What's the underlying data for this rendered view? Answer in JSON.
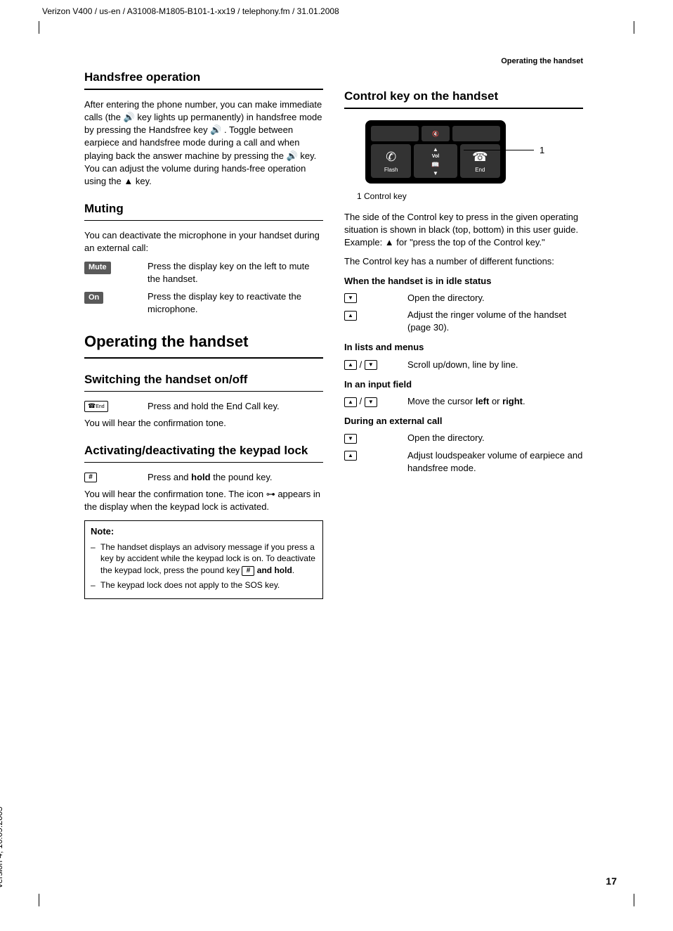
{
  "header": {
    "fileinfo": "Verizon V400 / us-en / A31008-M1805-B101-1-xx19 / telephony.fm / 31.01.2008",
    "running_title": "Operating the handset"
  },
  "side_version": "Version 4, 16.09.2005",
  "page_number": "17",
  "left": {
    "handsfree": {
      "title": "Handsfree operation",
      "body": "After entering the phone number, you can make immediate calls (the  🔊  key lights up permanently) in handsfree mode by pressing the Handsfree key  🔊 . Toggle between earpiece and handsfree mode during a call and when playing back the answer machine by pressing the  🔊  key. You can adjust the volume during hands-free operation using the  ▲  key."
    },
    "muting": {
      "title": "Muting",
      "body": "You can deactivate the microphone in your handset during an external call:",
      "mute_label": "Mute",
      "mute_desc": "Press the display key on the left to mute the handset.",
      "on_label": "On",
      "on_desc": "Press the display key to reactivate the microphone."
    },
    "chapter_title": "Operating the handset",
    "switching": {
      "title": "Switching the handset on/off",
      "key_desc": "Press and hold the End Call key.",
      "confirm": "You will hear the confirmation tone."
    },
    "keypad": {
      "title": "Activating/deactivating the keypad lock",
      "key_desc": "Press and hold the pound key.",
      "hold_word": "hold",
      "press_and": "Press and ",
      "pound_suffix": " the pound key.",
      "body": "You will hear the confirmation tone. The icon ⊶ appears in the display when the keypad lock is activated.",
      "note_title": "Note:",
      "note1_a": "The handset displays an advisory message if you press a key by accident while the keypad lock is on. To deactivate the keypad lock, press the pound key ",
      "note1_b": " and hold",
      "note1_c": ".",
      "note2": "The keypad lock does not apply to the SOS key."
    }
  },
  "right": {
    "controlkey": {
      "title": "Control key on the handset",
      "figure": {
        "softkey_mid": "🔇",
        "flash": "Flash",
        "end": "End",
        "vol": "Vol",
        "callout": "1"
      },
      "legend": "1 Control key",
      "body1": "The side of the Control key to press in the given operating situation is shown in black (top, bottom) in this user guide. Example:  ▲  for \"press the top of the Control key.\"",
      "body2": "The Control key has a number of different functions:",
      "idle": {
        "title": "When the handset is in idle status",
        "open_dir": "Open the directory.",
        "ringer": "Adjust the ringer volume of the handset (page 30)."
      },
      "lists": {
        "title": "In lists and menus",
        "desc": "Scroll up/down, line by line."
      },
      "input": {
        "title": "In an input field",
        "desc_a": "Move the cursor ",
        "desc_left": "left",
        "desc_or": " or ",
        "desc_right": "right",
        "desc_end": "."
      },
      "call": {
        "title": "During an external call",
        "open_dir": "Open the directory.",
        "loud": "Adjust loudspeaker volume of earpiece and handsfree mode."
      }
    }
  }
}
